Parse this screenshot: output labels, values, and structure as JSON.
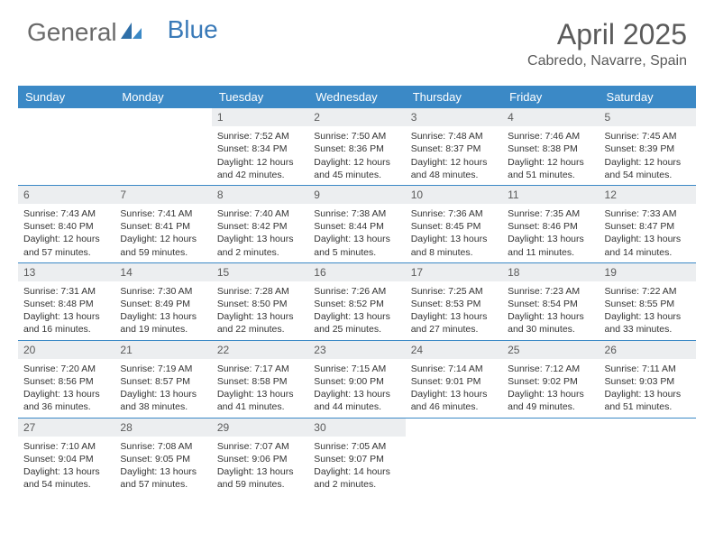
{
  "brand": {
    "part1": "General",
    "part2": "Blue"
  },
  "title": "April 2025",
  "location": "Cabredo, Navarre, Spain",
  "colors": {
    "header_bg": "#3b89c6",
    "header_text": "#ffffff",
    "daynum_bg": "#eceef0",
    "row_border": "#3b89c6",
    "text": "#333333",
    "title_text": "#5a5a5a"
  },
  "weekdays": [
    "Sunday",
    "Monday",
    "Tuesday",
    "Wednesday",
    "Thursday",
    "Friday",
    "Saturday"
  ],
  "weeks": [
    [
      null,
      null,
      {
        "d": "1",
        "sr": "Sunrise: 7:52 AM",
        "ss": "Sunset: 8:34 PM",
        "dl1": "Daylight: 12 hours",
        "dl2": "and 42 minutes."
      },
      {
        "d": "2",
        "sr": "Sunrise: 7:50 AM",
        "ss": "Sunset: 8:36 PM",
        "dl1": "Daylight: 12 hours",
        "dl2": "and 45 minutes."
      },
      {
        "d": "3",
        "sr": "Sunrise: 7:48 AM",
        "ss": "Sunset: 8:37 PM",
        "dl1": "Daylight: 12 hours",
        "dl2": "and 48 minutes."
      },
      {
        "d": "4",
        "sr": "Sunrise: 7:46 AM",
        "ss": "Sunset: 8:38 PM",
        "dl1": "Daylight: 12 hours",
        "dl2": "and 51 minutes."
      },
      {
        "d": "5",
        "sr": "Sunrise: 7:45 AM",
        "ss": "Sunset: 8:39 PM",
        "dl1": "Daylight: 12 hours",
        "dl2": "and 54 minutes."
      }
    ],
    [
      {
        "d": "6",
        "sr": "Sunrise: 7:43 AM",
        "ss": "Sunset: 8:40 PM",
        "dl1": "Daylight: 12 hours",
        "dl2": "and 57 minutes."
      },
      {
        "d": "7",
        "sr": "Sunrise: 7:41 AM",
        "ss": "Sunset: 8:41 PM",
        "dl1": "Daylight: 12 hours",
        "dl2": "and 59 minutes."
      },
      {
        "d": "8",
        "sr": "Sunrise: 7:40 AM",
        "ss": "Sunset: 8:42 PM",
        "dl1": "Daylight: 13 hours",
        "dl2": "and 2 minutes."
      },
      {
        "d": "9",
        "sr": "Sunrise: 7:38 AM",
        "ss": "Sunset: 8:44 PM",
        "dl1": "Daylight: 13 hours",
        "dl2": "and 5 minutes."
      },
      {
        "d": "10",
        "sr": "Sunrise: 7:36 AM",
        "ss": "Sunset: 8:45 PM",
        "dl1": "Daylight: 13 hours",
        "dl2": "and 8 minutes."
      },
      {
        "d": "11",
        "sr": "Sunrise: 7:35 AM",
        "ss": "Sunset: 8:46 PM",
        "dl1": "Daylight: 13 hours",
        "dl2": "and 11 minutes."
      },
      {
        "d": "12",
        "sr": "Sunrise: 7:33 AM",
        "ss": "Sunset: 8:47 PM",
        "dl1": "Daylight: 13 hours",
        "dl2": "and 14 minutes."
      }
    ],
    [
      {
        "d": "13",
        "sr": "Sunrise: 7:31 AM",
        "ss": "Sunset: 8:48 PM",
        "dl1": "Daylight: 13 hours",
        "dl2": "and 16 minutes."
      },
      {
        "d": "14",
        "sr": "Sunrise: 7:30 AM",
        "ss": "Sunset: 8:49 PM",
        "dl1": "Daylight: 13 hours",
        "dl2": "and 19 minutes."
      },
      {
        "d": "15",
        "sr": "Sunrise: 7:28 AM",
        "ss": "Sunset: 8:50 PM",
        "dl1": "Daylight: 13 hours",
        "dl2": "and 22 minutes."
      },
      {
        "d": "16",
        "sr": "Sunrise: 7:26 AM",
        "ss": "Sunset: 8:52 PM",
        "dl1": "Daylight: 13 hours",
        "dl2": "and 25 minutes."
      },
      {
        "d": "17",
        "sr": "Sunrise: 7:25 AM",
        "ss": "Sunset: 8:53 PM",
        "dl1": "Daylight: 13 hours",
        "dl2": "and 27 minutes."
      },
      {
        "d": "18",
        "sr": "Sunrise: 7:23 AM",
        "ss": "Sunset: 8:54 PM",
        "dl1": "Daylight: 13 hours",
        "dl2": "and 30 minutes."
      },
      {
        "d": "19",
        "sr": "Sunrise: 7:22 AM",
        "ss": "Sunset: 8:55 PM",
        "dl1": "Daylight: 13 hours",
        "dl2": "and 33 minutes."
      }
    ],
    [
      {
        "d": "20",
        "sr": "Sunrise: 7:20 AM",
        "ss": "Sunset: 8:56 PM",
        "dl1": "Daylight: 13 hours",
        "dl2": "and 36 minutes."
      },
      {
        "d": "21",
        "sr": "Sunrise: 7:19 AM",
        "ss": "Sunset: 8:57 PM",
        "dl1": "Daylight: 13 hours",
        "dl2": "and 38 minutes."
      },
      {
        "d": "22",
        "sr": "Sunrise: 7:17 AM",
        "ss": "Sunset: 8:58 PM",
        "dl1": "Daylight: 13 hours",
        "dl2": "and 41 minutes."
      },
      {
        "d": "23",
        "sr": "Sunrise: 7:15 AM",
        "ss": "Sunset: 9:00 PM",
        "dl1": "Daylight: 13 hours",
        "dl2": "and 44 minutes."
      },
      {
        "d": "24",
        "sr": "Sunrise: 7:14 AM",
        "ss": "Sunset: 9:01 PM",
        "dl1": "Daylight: 13 hours",
        "dl2": "and 46 minutes."
      },
      {
        "d": "25",
        "sr": "Sunrise: 7:12 AM",
        "ss": "Sunset: 9:02 PM",
        "dl1": "Daylight: 13 hours",
        "dl2": "and 49 minutes."
      },
      {
        "d": "26",
        "sr": "Sunrise: 7:11 AM",
        "ss": "Sunset: 9:03 PM",
        "dl1": "Daylight: 13 hours",
        "dl2": "and 51 minutes."
      }
    ],
    [
      {
        "d": "27",
        "sr": "Sunrise: 7:10 AM",
        "ss": "Sunset: 9:04 PM",
        "dl1": "Daylight: 13 hours",
        "dl2": "and 54 minutes."
      },
      {
        "d": "28",
        "sr": "Sunrise: 7:08 AM",
        "ss": "Sunset: 9:05 PM",
        "dl1": "Daylight: 13 hours",
        "dl2": "and 57 minutes."
      },
      {
        "d": "29",
        "sr": "Sunrise: 7:07 AM",
        "ss": "Sunset: 9:06 PM",
        "dl1": "Daylight: 13 hours",
        "dl2": "and 59 minutes."
      },
      {
        "d": "30",
        "sr": "Sunrise: 7:05 AM",
        "ss": "Sunset: 9:07 PM",
        "dl1": "Daylight: 14 hours",
        "dl2": "and 2 minutes."
      },
      null,
      null,
      null
    ]
  ]
}
